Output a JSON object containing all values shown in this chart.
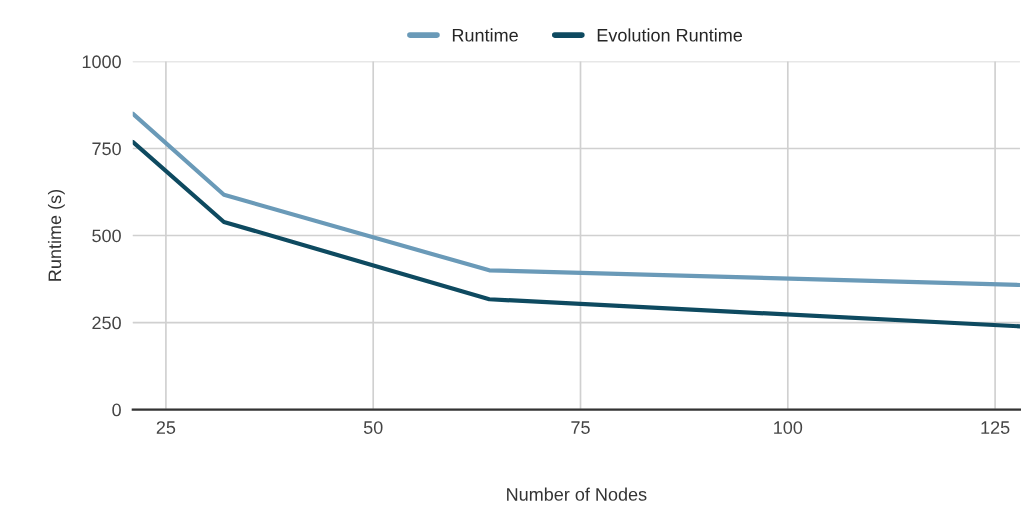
{
  "chart_data": {
    "type": "line",
    "xlabel": "Number of Nodes",
    "ylabel": "Runtime (s)",
    "x": [
      21,
      32,
      64,
      128
    ],
    "series": [
      {
        "name": "Runtime",
        "color": "#6a9ab8",
        "values": [
          850,
          617,
          400,
          358
        ]
      },
      {
        "name": "Evolution Runtime",
        "color": "#0e4a60",
        "values": [
          769,
          539,
          317,
          239
        ]
      }
    ],
    "xlim": [
      21,
      128
    ],
    "xticks": [
      25,
      50,
      75,
      100,
      125
    ],
    "ylim": [
      0,
      1000
    ],
    "yticks": [
      0,
      250,
      500,
      750,
      1000
    ],
    "grid": true,
    "legend": "top",
    "marker": "none",
    "line_style": "solid"
  }
}
